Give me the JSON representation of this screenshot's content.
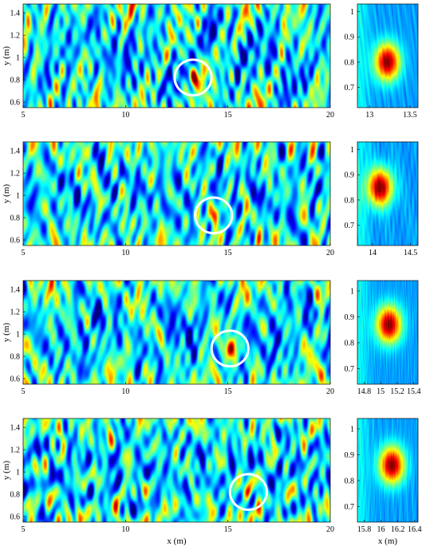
{
  "chart_data": [
    {
      "type": "heatmap",
      "panel": "row1-wide",
      "xlim": [
        5,
        20
      ],
      "ylim": [
        0.55,
        1.48
      ],
      "xticks": [
        "5",
        "10",
        "15",
        "20"
      ],
      "yticks": [
        "0.6",
        "0.8",
        "1",
        "1.2",
        "1.4"
      ],
      "xlabel": "",
      "ylabel": "y (m)",
      "colormap": "jet",
      "highlight": {
        "x": 13.3,
        "y": 0.82,
        "rx": 0.9,
        "ry": 0.16
      }
    },
    {
      "type": "heatmap",
      "panel": "row1-zoom",
      "xlim": [
        12.85,
        13.6
      ],
      "ylim": [
        0.62,
        1.03
      ],
      "xticks": [
        "13",
        "13.5"
      ],
      "yticks": [
        "0.7",
        "0.8",
        "0.9",
        "1"
      ],
      "xlabel": "",
      "colormap": "jet",
      "peak": {
        "x": 13.22,
        "y": 0.8
      }
    },
    {
      "type": "heatmap",
      "panel": "row2-wide",
      "xlim": [
        5,
        20
      ],
      "ylim": [
        0.55,
        1.48
      ],
      "xticks": [
        "5",
        "10",
        "15",
        "20"
      ],
      "yticks": [
        "0.6",
        "0.8",
        "1",
        "1.2",
        "1.4"
      ],
      "xlabel": "",
      "ylabel": "y (m)",
      "colormap": "jet",
      "highlight": {
        "x": 14.3,
        "y": 0.82,
        "rx": 0.9,
        "ry": 0.16
      }
    },
    {
      "type": "heatmap",
      "panel": "row2-zoom",
      "xlim": [
        13.8,
        14.6
      ],
      "ylim": [
        0.62,
        1.03
      ],
      "xticks": [
        "14",
        "14.5"
      ],
      "yticks": [
        "0.7",
        "0.8",
        "0.9",
        "1"
      ],
      "xlabel": "",
      "colormap": "jet",
      "peak": {
        "x": 14.1,
        "y": 0.85
      }
    },
    {
      "type": "heatmap",
      "panel": "row3-wide",
      "xlim": [
        5,
        20
      ],
      "ylim": [
        0.55,
        1.48
      ],
      "xticks": [
        "5",
        "10",
        "15",
        "20"
      ],
      "yticks": [
        "0.6",
        "0.8",
        "1",
        "1.2",
        "1.4"
      ],
      "xlabel": "",
      "ylabel": "y (m)",
      "colormap": "jet",
      "highlight": {
        "x": 15.1,
        "y": 0.87,
        "rx": 0.9,
        "ry": 0.16
      }
    },
    {
      "type": "heatmap",
      "panel": "row3-zoom",
      "xlim": [
        14.72,
        15.45
      ],
      "ylim": [
        0.64,
        1.04
      ],
      "xticks": [
        "14.8",
        "15",
        "15.2",
        "15.4"
      ],
      "yticks": [
        "0.7",
        "0.8",
        "0.9",
        "1"
      ],
      "xlabel": "",
      "colormap": "jet",
      "peak": {
        "x": 15.1,
        "y": 0.87
      }
    },
    {
      "type": "heatmap",
      "panel": "row4-wide",
      "xlim": [
        5,
        20
      ],
      "ylim": [
        0.55,
        1.48
      ],
      "xticks": [
        "5",
        "10",
        "15",
        "20"
      ],
      "yticks": [
        "0.6",
        "0.8",
        "1",
        "1.2",
        "1.4"
      ],
      "xlabel": "x (m)",
      "ylabel": "y (m)",
      "colormap": "jet",
      "highlight": {
        "x": 16.0,
        "y": 0.82,
        "rx": 0.9,
        "ry": 0.16
      }
    },
    {
      "type": "heatmap",
      "panel": "row4-zoom",
      "xlim": [
        15.72,
        16.44
      ],
      "ylim": [
        0.64,
        1.04
      ],
      "xticks": [
        "15.8",
        "16",
        "16.2",
        "16.4"
      ],
      "yticks": [
        "0.7",
        "0.8",
        "0.9",
        "1"
      ],
      "xlabel": "x (m)",
      "colormap": "jet",
      "peak": {
        "x": 16.13,
        "y": 0.86
      }
    }
  ]
}
